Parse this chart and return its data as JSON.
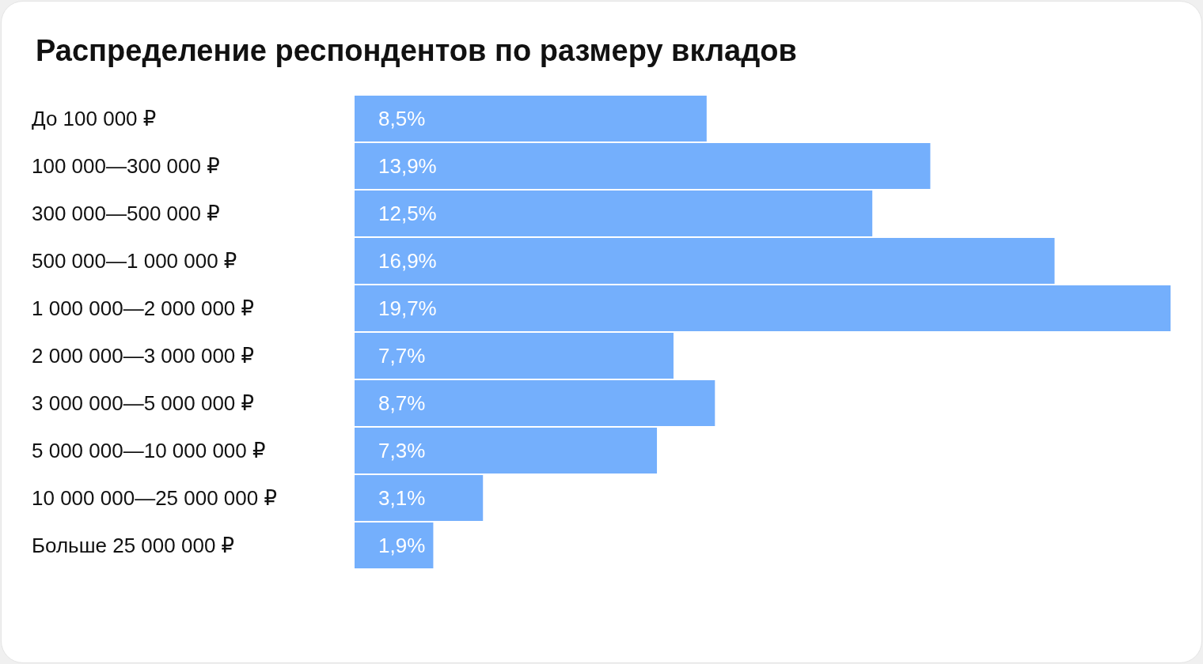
{
  "chart_data": {
    "type": "bar",
    "orientation": "horizontal",
    "title": "Распределение респондентов по размеру вкладов",
    "categories": [
      "До 100 000 ₽",
      "100 000—300 000 ₽",
      "300 000—500 000 ₽",
      "500 000—1 000 000 ₽",
      "1 000 000—2 000 000 ₽",
      "2 000 000—3 000 000 ₽",
      "3 000 000—5 000 000 ₽",
      "5 000 000—10 000 000 ₽",
      "10 000 000—25 000 000 ₽",
      "Больше 25 000 000 ₽"
    ],
    "values": [
      8.5,
      13.9,
      12.5,
      16.9,
      19.7,
      7.7,
      8.7,
      7.3,
      3.1,
      1.9
    ],
    "value_labels": [
      "8,5%",
      "13,9%",
      "12,5%",
      "16,9%",
      "19,7%",
      "7,7%",
      "8,7%",
      "7,3%",
      "3,1%",
      "1,9%"
    ],
    "color": "#74affc"
  }
}
